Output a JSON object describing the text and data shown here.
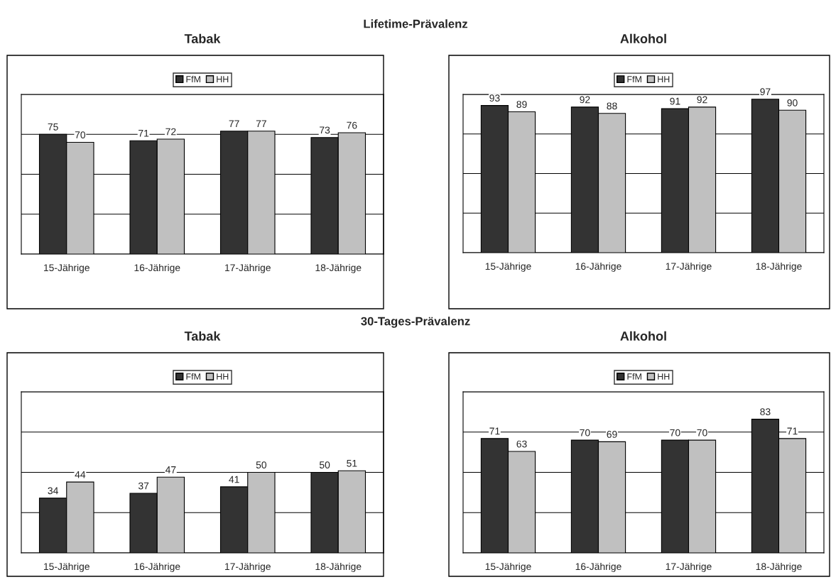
{
  "chart_data": [
    {
      "type": "bar",
      "title": "Tabak",
      "annotations": [
        "Lifetime-Prävalenz"
      ],
      "categories": [
        "15-Jährige",
        "16-Jährige",
        "17-Jährige",
        "18-Jährige"
      ],
      "series": [
        {
          "name": "FfM",
          "color": "#333333",
          "values": [
            75,
            71,
            77,
            73
          ]
        },
        {
          "name": "HH",
          "color": "#c0c0c0",
          "values": [
            70,
            72,
            77,
            76
          ]
        }
      ],
      "ylim": [
        0,
        100
      ],
      "yticks": [
        {
          "value": 0,
          "label": null
        },
        {
          "value": 25,
          "label": null
        },
        {
          "value": 50,
          "label": null
        },
        {
          "value": 75,
          "label": null
        },
        {
          "value": 100,
          "label": null
        }
      ],
      "grid": "y",
      "tick_labels": "x",
      "data_labels": true,
      "legend": "top"
    },
    {
      "type": "bar",
      "title": "Alkohol",
      "categories": [
        "15-Jährige",
        "16-Jährige",
        "17-Jährige",
        "18-Jährige"
      ],
      "series": [
        {
          "name": "FfM",
          "color": "#333333",
          "values": [
            93,
            92,
            91,
            97
          ]
        },
        {
          "name": "HH",
          "color": "#c0c0c0",
          "values": [
            89,
            88,
            92,
            90
          ]
        }
      ],
      "ylim": [
        0,
        100
      ],
      "yticks": [
        {
          "value": 0,
          "label": null
        },
        {
          "value": 25,
          "label": null
        },
        {
          "value": 50,
          "label": null
        },
        {
          "value": 75,
          "label": null
        },
        {
          "value": 100,
          "label": null
        }
      ],
      "grid": "y",
      "tick_labels": "x",
      "data_labels": true,
      "legend": "top"
    },
    {
      "type": "bar",
      "title": "Tabak",
      "annotations": [
        "30-Tages-Prävalenz"
      ],
      "categories": [
        "15-Jährige",
        "16-Jährige",
        "17-Jährige",
        "18-Jährige"
      ],
      "series": [
        {
          "name": "FfM",
          "color": "#333333",
          "values": [
            34,
            37,
            41,
            50
          ]
        },
        {
          "name": "HH",
          "color": "#c0c0c0",
          "values": [
            44,
            47,
            50,
            51
          ]
        }
      ],
      "ylim": [
        0,
        100
      ],
      "yticks": [
        {
          "value": 0,
          "label": null
        },
        {
          "value": 25,
          "label": null
        },
        {
          "value": 50,
          "label": null
        },
        {
          "value": 75,
          "label": null
        },
        {
          "value": 100,
          "label": null
        }
      ],
      "grid": "y",
      "tick_labels": "x",
      "data_labels": true,
      "legend": "top"
    },
    {
      "type": "bar",
      "title": "Alkohol",
      "categories": [
        "15-Jährige",
        "16-Jährige",
        "17-Jährige",
        "18-Jährige"
      ],
      "series": [
        {
          "name": "FfM",
          "color": "#333333",
          "values": [
            71,
            70,
            70,
            83
          ]
        },
        {
          "name": "HH",
          "color": "#c0c0c0",
          "values": [
            63,
            69,
            70,
            71
          ]
        }
      ],
      "ylim": [
        0,
        100
      ],
      "yticks": [
        {
          "value": 0,
          "label": null
        },
        {
          "value": 25,
          "label": null
        },
        {
          "value": 50,
          "label": null
        },
        {
          "value": 75,
          "label": null
        },
        {
          "value": 100,
          "label": null
        }
      ],
      "grid": "y",
      "tick_labels": "x",
      "data_labels": true,
      "legend": "top"
    }
  ]
}
